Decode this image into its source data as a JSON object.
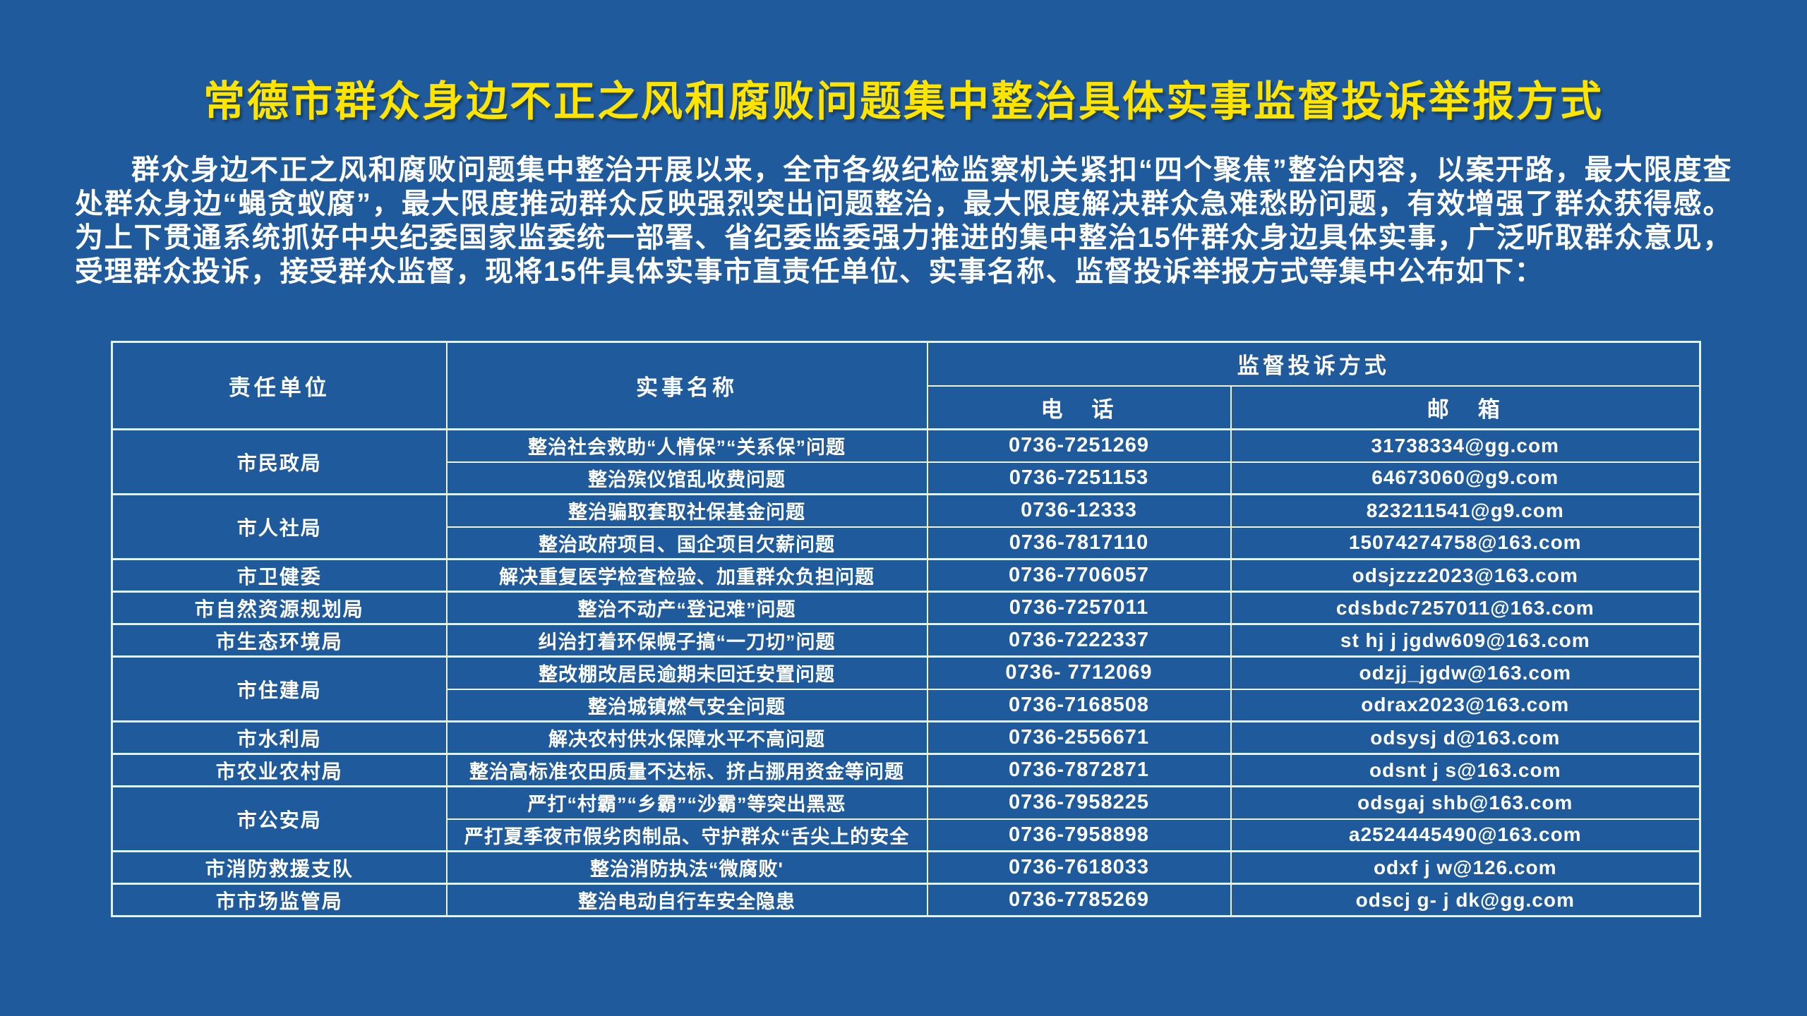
{
  "page": {
    "title": "常德市群众身边不正之风和腐败问题集中整治具体实事监督投诉举报方式",
    "intro": "群众身边不正之风和腐败问题集中整治开展以来，全市各级纪检监察机关紧扣“四个聚焦”整治内容，以案开路，最大限度查处群众身边“蝇贪蚁腐”，最大限度推动群众反映强烈突出问题整治，最大限度解决群众急难愁盼问题，有效增强了群众获得感。为上下贯通系统抓好中央纪委国家监委统一部署、省纪委监委强力推进的集中整治15件群众身边具体实事，广泛听取群众意见，受理群众投诉，接受群众监督，现将15件具体实事市直责任单位、实事名称、监督投诉举报方式等集中公布如下："
  },
  "table": {
    "headers": {
      "unit": "责任单位",
      "matter": "实事名称",
      "method": "监督投诉方式",
      "phone": "电　话",
      "email": "邮　箱"
    },
    "groups": [
      {
        "unit": "市民政局",
        "rows": [
          {
            "matter": "整治社会救助“人情保”“关系保”问题",
            "phone": "0736-7251269",
            "email": "31738334@gg.com"
          },
          {
            "matter": "整治殡仪馆乱收费问题",
            "phone": "0736-7251153",
            "email": "64673060@g9.com"
          }
        ]
      },
      {
        "unit": "市人社局",
        "rows": [
          {
            "matter": "整治骗取套取社保基金问题",
            "phone": "0736-12333",
            "email": "823211541@g9.com"
          },
          {
            "matter": "整治政府项目、国企项目欠薪问题",
            "phone": "0736-7817110",
            "email": "15074274758@163.com"
          }
        ]
      },
      {
        "unit": "市卫健委",
        "rows": [
          {
            "matter": "解决重复医学检查检验、加重群众负担问题",
            "phone": "0736-7706057",
            "email": "odsjzzz2023@163.com"
          }
        ]
      },
      {
        "unit": "市自然资源规划局",
        "rows": [
          {
            "matter": "整治不动产“登记难”问题",
            "phone": "0736-7257011",
            "email": "cdsbdc7257011@163.com"
          }
        ]
      },
      {
        "unit": "市生态环境局",
        "rows": [
          {
            "matter": "纠治打着环保幌子搞“一刀切”问题",
            "phone": "0736-7222337",
            "email": "st hj j jgdw609@163.com"
          }
        ]
      },
      {
        "unit": "市住建局",
        "rows": [
          {
            "matter": "整改棚改居民逾期未回迁安置问题",
            "phone": "0736- 7712069",
            "email": "odzjj_jgdw@163.com"
          },
          {
            "matter": "整治城镇燃气安全问题",
            "phone": "0736-7168508",
            "email": "odrax2023@163.com"
          }
        ]
      },
      {
        "unit": "市水利局",
        "rows": [
          {
            "matter": "解决农村供水保障水平不高问题",
            "phone": "0736-2556671",
            "email": "odsysj d@163.com"
          }
        ]
      },
      {
        "unit": "市农业农村局",
        "rows": [
          {
            "matter": "整治高标准农田质量不达标、挤占挪用资金等问题",
            "phone": "0736-7872871",
            "email": "odsnt j s@163.com"
          }
        ]
      },
      {
        "unit": "市公安局",
        "rows": [
          {
            "matter": "严打“村霸”“乡霸”“沙霸”等突出黑恶",
            "phone": "0736-7958225",
            "email": "odsgaj shb@163.com"
          },
          {
            "matter": "严打夏季夜市假劣肉制品、守护群众“舌尖上的安全",
            "phone": "0736-7958898",
            "email": "a2524445490@163.com"
          }
        ]
      },
      {
        "unit": "市消防救援支队",
        "rows": [
          {
            "matter": "整治消防执法“微腐败'",
            "phone": "0736-7618033",
            "email": "odxf j w@126.com"
          }
        ]
      },
      {
        "unit": "市市场监管局",
        "rows": [
          {
            "matter": "整治电动自行车安全隐患",
            "phone": "0736-7785269",
            "email": "odscj g- j dk@gg.com"
          }
        ]
      }
    ]
  },
  "colors": {
    "background": "#1f5b9c",
    "table_border": "#eef3cd",
    "title": "#ffe400",
    "text": "#ffffff"
  }
}
